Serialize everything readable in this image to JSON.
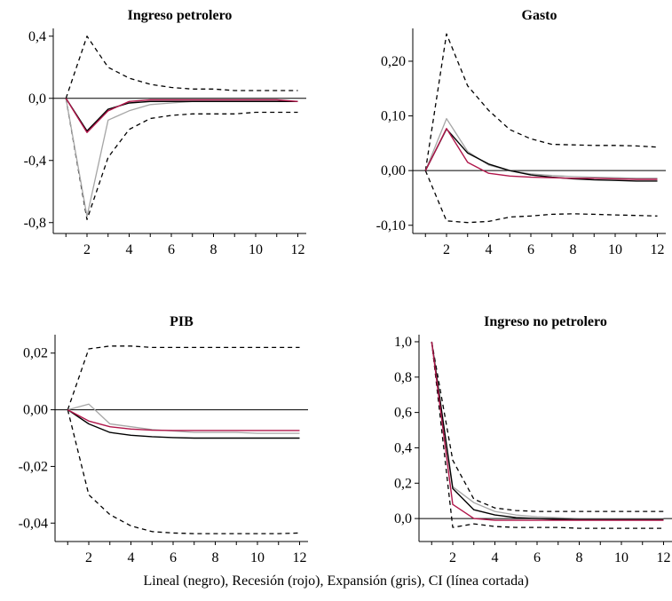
{
  "caption": "Lineal (negro), Recesión (rojo), Expansión (gris), CI (línea cortada)",
  "colors": {
    "lineal": "#000000",
    "recesion": "#b0164a",
    "expansion": "#a6a6a6",
    "ci": "#000000"
  },
  "chart_data": [
    {
      "type": "line",
      "title": "Ingreso petrolero",
      "x": [
        1,
        2,
        3,
        4,
        5,
        6,
        7,
        8,
        9,
        10,
        11,
        12
      ],
      "xticks": [
        "2",
        "4",
        "6",
        "8",
        "10",
        "12"
      ],
      "xtick_values": [
        2,
        4,
        6,
        8,
        10,
        12
      ],
      "xlim": [
        0.4,
        12.4
      ],
      "ylim": [
        -0.87,
        0.45
      ],
      "yticks": [
        "0,4",
        "0,0",
        "-0,4",
        "-0,8"
      ],
      "ytick_values": [
        0.4,
        0.0,
        -0.4,
        -0.8
      ],
      "zero_line": true,
      "series": [
        {
          "key": "ci_upper",
          "style": "dashed",
          "values": [
            0,
            0.4,
            0.2,
            0.13,
            0.09,
            0.07,
            0.06,
            0.06,
            0.05,
            0.05,
            0.05,
            0.05
          ]
        },
        {
          "key": "ci_lower",
          "style": "dashed",
          "values": [
            0,
            -0.78,
            -0.38,
            -0.2,
            -0.13,
            -0.11,
            -0.1,
            -0.1,
            -0.1,
            -0.09,
            -0.09,
            -0.09
          ]
        },
        {
          "key": "expansion",
          "style": "gray",
          "values": [
            0,
            -0.76,
            -0.14,
            -0.08,
            -0.04,
            -0.03,
            -0.02,
            -0.02,
            -0.02,
            -0.02,
            -0.02,
            -0.02
          ]
        },
        {
          "key": "lineal",
          "style": "black",
          "values": [
            0,
            -0.21,
            -0.07,
            -0.03,
            -0.02,
            -0.02,
            -0.02,
            -0.02,
            -0.02,
            -0.02,
            -0.02,
            -0.02
          ]
        },
        {
          "key": "recesion",
          "style": "red",
          "values": [
            0,
            -0.22,
            -0.08,
            -0.02,
            -0.01,
            -0.01,
            -0.01,
            -0.01,
            -0.01,
            -0.01,
            -0.01,
            -0.02
          ]
        }
      ]
    },
    {
      "type": "line",
      "title": "Gasto",
      "x": [
        1,
        2,
        3,
        4,
        5,
        6,
        7,
        8,
        9,
        10,
        11,
        12
      ],
      "xticks": [
        "2",
        "4",
        "6",
        "8",
        "10",
        "12"
      ],
      "xtick_values": [
        2,
        4,
        6,
        8,
        10,
        12
      ],
      "xlim": [
        0.4,
        12.4
      ],
      "ylim": [
        -0.115,
        0.26
      ],
      "yticks": [
        "0,20",
        "0,10",
        "0,00",
        "-0,10"
      ],
      "ytick_values": [
        0.2,
        0.1,
        0.0,
        -0.1
      ],
      "zero_line": true,
      "series": [
        {
          "key": "ci_upper",
          "style": "dashed",
          "values": [
            0,
            0.25,
            0.155,
            0.11,
            0.075,
            0.058,
            0.048,
            0.047,
            0.046,
            0.046,
            0.045,
            0.043
          ]
        },
        {
          "key": "ci_lower",
          "style": "dashed",
          "values": [
            0,
            -0.092,
            -0.095,
            -0.093,
            -0.085,
            -0.083,
            -0.08,
            -0.079,
            -0.08,
            -0.081,
            -0.082,
            -0.083
          ]
        },
        {
          "key": "expansion",
          "style": "gray",
          "values": [
            0,
            0.095,
            0.035,
            0.01,
            0.0,
            -0.006,
            -0.009,
            -0.011,
            -0.012,
            -0.013,
            -0.014,
            -0.014
          ]
        },
        {
          "key": "lineal",
          "style": "black",
          "values": [
            0,
            0.076,
            0.032,
            0.012,
            0.0,
            -0.008,
            -0.012,
            -0.015,
            -0.017,
            -0.018,
            -0.019,
            -0.019
          ]
        },
        {
          "key": "recesion",
          "style": "red",
          "values": [
            0,
            0.077,
            0.015,
            -0.005,
            -0.01,
            -0.012,
            -0.013,
            -0.014,
            -0.014,
            -0.015,
            -0.016,
            -0.016
          ]
        }
      ]
    },
    {
      "type": "line",
      "title": "PIB",
      "x": [
        1,
        2,
        3,
        4,
        5,
        6,
        7,
        8,
        9,
        10,
        11,
        12
      ],
      "xticks": [
        "2",
        "4",
        "6",
        "8",
        "10",
        "12"
      ],
      "xtick_values": [
        2,
        4,
        6,
        8,
        10,
        12
      ],
      "xlim": [
        0.4,
        12.4
      ],
      "ylim": [
        -0.0465,
        0.0265
      ],
      "yticks": [
        "0,02",
        "0,00",
        "-0,02",
        "-0,04"
      ],
      "ytick_values": [
        0.02,
        0.0,
        -0.02,
        -0.04
      ],
      "zero_line": true,
      "series": [
        {
          "key": "ci_upper",
          "style": "dashed",
          "values": [
            0,
            0.0215,
            0.0225,
            0.0225,
            0.022,
            0.022,
            0.022,
            0.022,
            0.022,
            0.022,
            0.022,
            0.022
          ]
        },
        {
          "key": "ci_lower",
          "style": "dashed",
          "values": [
            0,
            -0.03,
            -0.037,
            -0.041,
            -0.043,
            -0.0435,
            -0.0437,
            -0.0437,
            -0.0437,
            -0.0437,
            -0.0437,
            -0.0435
          ]
        },
        {
          "key": "expansion",
          "style": "gray",
          "values": [
            0,
            0.002,
            -0.005,
            -0.006,
            -0.007,
            -0.0075,
            -0.008,
            -0.008,
            -0.008,
            -0.0083,
            -0.0083,
            -0.0083
          ]
        },
        {
          "key": "lineal",
          "style": "black",
          "values": [
            0,
            -0.005,
            -0.008,
            -0.009,
            -0.0095,
            -0.0098,
            -0.01,
            -0.01,
            -0.01,
            -0.01,
            -0.01,
            -0.01
          ]
        },
        {
          "key": "recesion",
          "style": "red",
          "values": [
            0,
            -0.004,
            -0.006,
            -0.0068,
            -0.0072,
            -0.0073,
            -0.0073,
            -0.0073,
            -0.0073,
            -0.0073,
            -0.0073,
            -0.0073
          ]
        }
      ]
    },
    {
      "type": "line",
      "title": "Ingreso no petrolero",
      "x": [
        1,
        2,
        3,
        4,
        5,
        6,
        7,
        8,
        9,
        10,
        11,
        12
      ],
      "xticks": [
        "2",
        "4",
        "6",
        "8",
        "10",
        "12"
      ],
      "xtick_values": [
        2,
        4,
        6,
        8,
        10,
        12
      ],
      "xlim": [
        0.4,
        12.4
      ],
      "ylim": [
        -0.13,
        1.04
      ],
      "yticks": [
        "1,0",
        "0,8",
        "0,6",
        "0,4",
        "0,2",
        "0,0"
      ],
      "ytick_values": [
        1.0,
        0.8,
        0.6,
        0.4,
        0.2,
        0.0
      ],
      "zero_line": true,
      "series": [
        {
          "key": "ci_upper",
          "style": "dashed",
          "values": [
            1.0,
            0.33,
            0.11,
            0.06,
            0.045,
            0.04,
            0.04,
            0.04,
            0.04,
            0.04,
            0.04,
            0.04
          ]
        },
        {
          "key": "ci_lower",
          "style": "dashed",
          "values": [
            1.0,
            -0.05,
            -0.03,
            -0.045,
            -0.05,
            -0.05,
            -0.05,
            -0.055,
            -0.055,
            -0.055,
            -0.055,
            -0.055
          ]
        },
        {
          "key": "expansion",
          "style": "gray",
          "values": [
            1.0,
            0.18,
            0.09,
            0.04,
            0.02,
            0.01,
            0.005,
            0.0,
            0.0,
            0.0,
            0.0,
            0.0
          ]
        },
        {
          "key": "lineal",
          "style": "black",
          "values": [
            1.0,
            0.17,
            0.05,
            0.02,
            0.005,
            0.0,
            -0.005,
            -0.005,
            -0.005,
            -0.005,
            -0.005,
            -0.005
          ]
        },
        {
          "key": "recesion",
          "style": "red",
          "values": [
            1.0,
            0.08,
            0.0,
            -0.01,
            -0.01,
            -0.01,
            -0.01,
            -0.01,
            -0.01,
            -0.01,
            -0.01,
            -0.01
          ]
        }
      ]
    }
  ]
}
